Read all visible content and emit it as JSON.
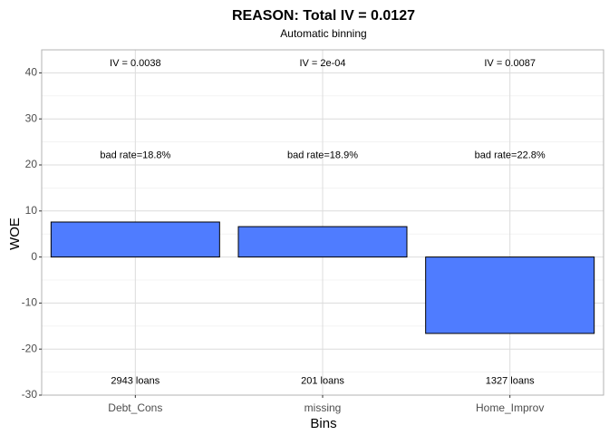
{
  "chart_data": {
    "type": "bar",
    "title": "REASON: Total IV = 0.0127",
    "subtitle": "Automatic binning",
    "xlabel": "Bins",
    "ylabel": "WOE",
    "categories": [
      "Debt_Cons",
      "missing",
      "Home_Improv"
    ],
    "values": [
      7.6,
      6.6,
      -16.6
    ],
    "ylim": [
      -30,
      45
    ],
    "yticks": [
      -30,
      -20,
      -10,
      0,
      10,
      20,
      30,
      40
    ],
    "grid": true,
    "bar_color": "#4f7cff",
    "iv_labels": [
      "IV = 0.0038",
      "IV = 2e-04",
      "IV = 0.0087"
    ],
    "bad_rate_labels": [
      "bad rate=18.8%",
      "bad rate=18.9%",
      "bad rate=22.8%"
    ],
    "count_labels": [
      "2943 loans",
      "201 loans",
      "1327 loans"
    ],
    "iv_label_y": 42,
    "bad_rate_label_y": 22,
    "count_label_y": -27
  }
}
